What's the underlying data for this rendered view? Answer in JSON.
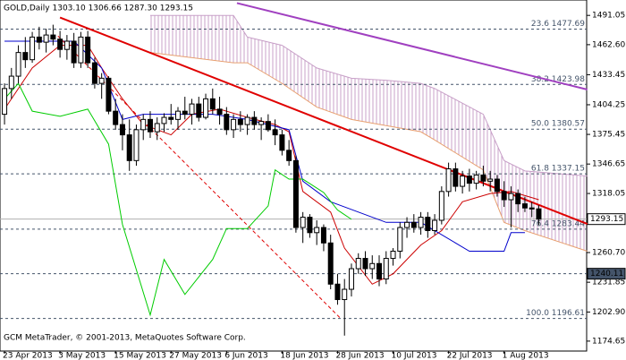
{
  "chart_data": {
    "type": "candlestick",
    "title": "GOLD,Daily  1303.10 1306.66 1287.30 1293.15",
    "footer": "GCM MetaTrader, © 2001-2013, MetaQuotes Software Corp.",
    "categories": [
      "23 Apr 2013",
      null,
      null,
      null,
      null,
      null,
      null,
      null,
      "3 May 2013",
      null,
      null,
      null,
      null,
      null,
      null,
      null,
      "15 May 2013",
      null,
      null,
      null,
      null,
      null,
      null,
      null,
      "27 May 2013",
      null,
      null,
      null,
      null,
      null,
      null,
      null,
      "6 Jun 2013",
      null,
      null,
      null,
      null,
      null,
      null,
      null,
      "18 Jun 2013",
      null,
      null,
      null,
      null,
      null,
      null,
      null,
      "28 Jun 2013",
      null,
      null,
      null,
      null,
      null,
      null,
      null,
      "10 Jul 2013",
      null,
      null,
      null,
      null,
      null,
      null,
      null,
      "22 Jul 2013",
      null,
      null,
      null,
      null,
      null,
      null,
      null,
      "1 Aug 2013",
      null,
      null,
      null,
      null,
      null
    ],
    "open": [
      1395,
      1420,
      1432,
      1455,
      1448,
      1470,
      1465,
      1472,
      1468,
      1458,
      1466,
      1445,
      1470,
      1445,
      1425,
      1430,
      1398,
      1385,
      1375,
      1350,
      1380,
      1390,
      1378,
      1386,
      1392,
      1390,
      1398,
      1395,
      1405,
      1392,
      1410,
      1400,
      1395,
      1380,
      1390,
      1385,
      1392,
      1385,
      1388,
      1380,
      1375,
      1360,
      1350,
      1285,
      1295,
      1280,
      1285,
      1270,
      1230,
      1215,
      1225,
      1245,
      1255,
      1245,
      1250,
      1235,
      1255,
      1262,
      1285,
      1290,
      1285,
      1295,
      1282,
      1292,
      1320,
      1342,
      1325,
      1335,
      1328,
      1336,
      1330,
      1332,
      1320,
      1312,
      1318,
      1308,
      1304,
      1303.1
    ],
    "high": [
      1425,
      1440,
      1462,
      1470,
      1475,
      1480,
      1478,
      1482,
      1476,
      1472,
      1474,
      1475,
      1476,
      1450,
      1435,
      1432,
      1410,
      1395,
      1390,
      1385,
      1395,
      1398,
      1392,
      1396,
      1405,
      1402,
      1412,
      1410,
      1412,
      1415,
      1420,
      1412,
      1402,
      1395,
      1398,
      1395,
      1398,
      1392,
      1395,
      1390,
      1380,
      1370,
      1355,
      1300,
      1298,
      1292,
      1288,
      1278,
      1240,
      1235,
      1250,
      1260,
      1262,
      1258,
      1258,
      1262,
      1265,
      1290,
      1295,
      1298,
      1300,
      1300,
      1298,
      1325,
      1348,
      1348,
      1340,
      1342,
      1340,
      1345,
      1340,
      1336,
      1330,
      1325,
      1322,
      1315,
      1310,
      1306.66
    ],
    "low": [
      1385,
      1410,
      1425,
      1440,
      1445,
      1458,
      1455,
      1462,
      1450,
      1448,
      1440,
      1440,
      1440,
      1420,
      1410,
      1395,
      1380,
      1360,
      1340,
      1345,
      1370,
      1372,
      1370,
      1378,
      1385,
      1380,
      1390,
      1385,
      1388,
      1390,
      1395,
      1385,
      1375,
      1372,
      1378,
      1375,
      1380,
      1370,
      1378,
      1365,
      1355,
      1345,
      1280,
      1270,
      1275,
      1268,
      1262,
      1225,
      1210,
      1180,
      1218,
      1240,
      1238,
      1235,
      1228,
      1230,
      1248,
      1255,
      1275,
      1280,
      1278,
      1275,
      1278,
      1288,
      1315,
      1320,
      1318,
      1320,
      1322,
      1325,
      1320,
      1315,
      1305,
      1285,
      1300,
      1300,
      1295,
      1287.3
    ],
    "close": [
      1420,
      1432,
      1455,
      1448,
      1470,
      1465,
      1472,
      1468,
      1458,
      1466,
      1445,
      1470,
      1445,
      1425,
      1430,
      1398,
      1385,
      1375,
      1350,
      1380,
      1390,
      1378,
      1386,
      1392,
      1390,
      1398,
      1395,
      1405,
      1392,
      1410,
      1400,
      1395,
      1380,
      1390,
      1385,
      1392,
      1385,
      1388,
      1380,
      1375,
      1360,
      1350,
      1285,
      1295,
      1280,
      1285,
      1270,
      1230,
      1215,
      1225,
      1245,
      1255,
      1245,
      1250,
      1235,
      1255,
      1262,
      1285,
      1290,
      1285,
      1295,
      1282,
      1292,
      1320,
      1342,
      1325,
      1335,
      1328,
      1336,
      1330,
      1332,
      1320,
      1312,
      1318,
      1308,
      1304,
      1303,
      1293.15
    ],
    "up_color": "#ffffff",
    "down_color": "#000000",
    "xlim": [
      -0.65,
      83.9
    ],
    "ylim": [
      1165,
      1506
    ],
    "yticks": [
      1491.05,
      {
        "value": 1462.6,
        "label": "1462.60"
      },
      1433.45,
      1404.25,
      1375.45,
      1346.65,
      1318.05,
      {
        "value": 1260.7,
        "label": "1260.70"
      },
      1231.85,
      {
        "value": 1202.9,
        "label": "1202.90"
      },
      1174.65
    ],
    "price_markers": [
      1293.15,
      1240.11
    ],
    "fib_levels": [
      {
        "value": 1477.69,
        "label": "23.6 1477.69"
      },
      {
        "value": 1423.98,
        "label": "38.2 1423.98"
      },
      {
        "value": 1380.57,
        "label": "50.0 1380.57"
      },
      {
        "value": 1337.15,
        "label": "61.8 1337.15"
      },
      {
        "value": 1283.44,
        "label": "76.4 1283.44"
      },
      {
        "value": 1196.61,
        "label": "100.0 1196.61"
      }
    ],
    "cloud": {
      "color": "#c8a0c8",
      "x": [
        21,
        33,
        35,
        40,
        45,
        50,
        55,
        60,
        62,
        69,
        72,
        75,
        84
      ],
      "span_a": [
        1491,
        1491,
        1470,
        1462,
        1440,
        1430,
        1428,
        1425,
        1420,
        1395,
        1350,
        1340,
        1335
      ],
      "span_b": [
        1455,
        1445,
        1445,
        1425,
        1402,
        1390,
        1384,
        1378,
        1370,
        1341,
        1290,
        1282,
        1262
      ],
      "span_b_color": "#e8a070"
    },
    "indicators": [
      {
        "color": "#cc0000",
        "x": [
          0,
          4,
          8,
          12,
          14,
          17,
          20,
          24,
          27,
          31,
          35,
          39,
          41,
          43,
          47,
          49,
          53,
          56,
          60,
          63,
          66,
          70,
          73,
          77
        ],
        "values": [
          1400,
          1440,
          1462,
          1462,
          1440,
          1410,
          1385,
          1375,
          1395,
          1400,
          1392,
          1385,
          1378,
          1320,
          1300,
          1265,
          1230,
          1240,
          1268,
          1282,
          1310,
          1318,
          1320,
          1312
        ]
      },
      {
        "color": "#0000cc",
        "x": [
          0,
          10,
          14,
          17,
          20,
          30,
          35,
          38,
          41,
          43,
          47,
          55,
          60,
          65,
          67,
          72,
          73,
          75
        ],
        "values": [
          1466,
          1466,
          1440,
          1390,
          1395,
          1395,
          1390,
          1385,
          1380,
          1330,
          1310,
          1290,
          1290,
          1270,
          1262,
          1262,
          1280,
          1280
        ]
      },
      {
        "color": "#00cc00",
        "x": [
          0,
          2,
          4,
          8,
          12,
          15,
          17,
          21,
          23,
          26,
          30,
          32,
          35,
          38,
          39,
          41,
          43,
          46,
          48,
          50
        ],
        "values": [
          1410,
          1425,
          1398,
          1393,
          1400,
          1366,
          1288,
          1200,
          1254,
          1220,
          1254,
          1284,
          1284,
          1306,
          1341,
          1332,
          1332,
          1319,
          1302,
          1293
        ]
      }
    ],
    "trendlines": [
      {
        "color": "#e00000",
        "x": [
          8,
          84
        ],
        "values": [
          1489,
          1288.5
        ],
        "dashed": false
      },
      {
        "color": "#a040c0",
        "x": [
          33.5,
          84
        ],
        "values": [
          1503,
          1419
        ],
        "dashed": false
      },
      {
        "color": "#e00000",
        "x": [
          7.7,
          48.4
        ],
        "values": [
          1471,
          1197
        ],
        "dashed": true
      }
    ]
  }
}
